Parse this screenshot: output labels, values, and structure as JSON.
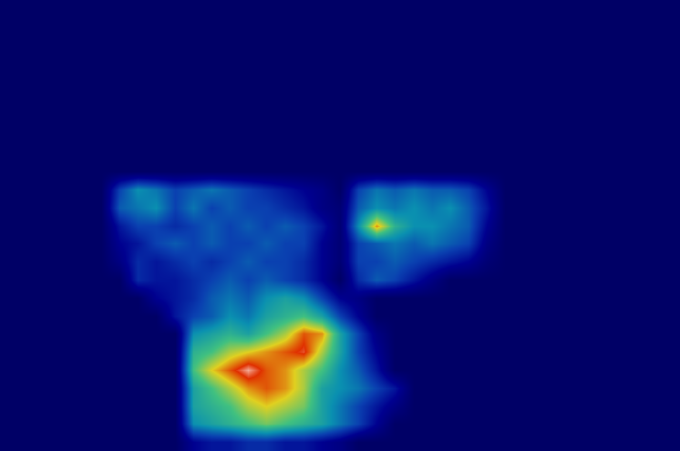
{
  "chart_data": {
    "type": "heatmap",
    "tick_labels": false,
    "grid": false,
    "xlim": [
      -0.5,
      36.5
    ],
    "ylim": [
      24.5,
      -0.5
    ],
    "zlim": [
      0,
      1
    ],
    "cells": [
      [
        0,
        0,
        0,
        0,
        0,
        0,
        0,
        0,
        0,
        0,
        0,
        0,
        0,
        0,
        0,
        0,
        0,
        0,
        0,
        0,
        0,
        0,
        0,
        0,
        0,
        0,
        0,
        0,
        0,
        0,
        0,
        0,
        0,
        0,
        0,
        0,
        0
      ],
      [
        0,
        0,
        0,
        0,
        0,
        0,
        0,
        0,
        0,
        0,
        0,
        0,
        0,
        0,
        0,
        0,
        0,
        0,
        0,
        0,
        0,
        0,
        0,
        0,
        0,
        0,
        0,
        0,
        0,
        0,
        0,
        0,
        0,
        0,
        0,
        0,
        0
      ],
      [
        0,
        0,
        0,
        0,
        0,
        0,
        0,
        0,
        0,
        0,
        0,
        0,
        0,
        0,
        0,
        0,
        0,
        0,
        0,
        0,
        0,
        0,
        0,
        0,
        0,
        0,
        0,
        0,
        0,
        0,
        0,
        0,
        0,
        0,
        0,
        0,
        0
      ],
      [
        0,
        0,
        0,
        0,
        0,
        0,
        0,
        0,
        0,
        0,
        0,
        0,
        0,
        0,
        0,
        0,
        0,
        0,
        0,
        0,
        0,
        0,
        0,
        0,
        0,
        0,
        0,
        0,
        0,
        0,
        0,
        0,
        0,
        0,
        0,
        0,
        0
      ],
      [
        0,
        0,
        0,
        0,
        0,
        0,
        0,
        0,
        0,
        0,
        0,
        0,
        0,
        0,
        0,
        0,
        0,
        0,
        0,
        0,
        0,
        0,
        0,
        0,
        0,
        0,
        0,
        0,
        0,
        0,
        0,
        0,
        0,
        0,
        0,
        0,
        0
      ],
      [
        0,
        0,
        0,
        0,
        0,
        0,
        0,
        0,
        0,
        0,
        0,
        0,
        0,
        0,
        0,
        0,
        0,
        0,
        0,
        0,
        0,
        0,
        0,
        0,
        0,
        0,
        0,
        0,
        0,
        0,
        0,
        0,
        0,
        0,
        0,
        0,
        0
      ],
      [
        0,
        0,
        0,
        0,
        0,
        0,
        0,
        0,
        0,
        0,
        0,
        0,
        0,
        0,
        0,
        0,
        0,
        0,
        0,
        0,
        0,
        0,
        0,
        0,
        0,
        0,
        0,
        0,
        0,
        0,
        0,
        0,
        0,
        0,
        0,
        0,
        0
      ],
      [
        0,
        0,
        0,
        0,
        0,
        0,
        0,
        0,
        0,
        0,
        0,
        0,
        0,
        0,
        0,
        0,
        0,
        0,
        0,
        0,
        0,
        0,
        0,
        0,
        0,
        0,
        0,
        0,
        0,
        0,
        0,
        0,
        0,
        0,
        0,
        0,
        0
      ],
      [
        0,
        0,
        0,
        0,
        0,
        0,
        0,
        0,
        0,
        0,
        0,
        0,
        0,
        0,
        0,
        0,
        0,
        0,
        0,
        0,
        0,
        0,
        0,
        0,
        0,
        0,
        0,
        0,
        0,
        0,
        0,
        0,
        0,
        0,
        0,
        0,
        0
      ],
      [
        0,
        0,
        0,
        0,
        0,
        0,
        0,
        0,
        0,
        0,
        0,
        0,
        0,
        0,
        0,
        0,
        0,
        0,
        0,
        0,
        0,
        0,
        0,
        0,
        0,
        0,
        0,
        0,
        0,
        0,
        0,
        0,
        0,
        0,
        0,
        0,
        0
      ],
      [
        0,
        0,
        0,
        0,
        0,
        0,
        0.3,
        0.45,
        0.4,
        0.3,
        0.35,
        0.4,
        0.35,
        0.3,
        0.25,
        0.2,
        0.15,
        0.1,
        0,
        0.3,
        0.4,
        0.35,
        0.4,
        0.35,
        0.35,
        0.3,
        0.15,
        0,
        0,
        0,
        0,
        0,
        0,
        0,
        0,
        0,
        0
      ],
      [
        0,
        0,
        0,
        0,
        0,
        0,
        0.35,
        0.4,
        0.45,
        0.3,
        0.4,
        0.3,
        0.35,
        0.3,
        0.3,
        0.25,
        0.2,
        0.1,
        0.05,
        0.35,
        0.45,
        0.4,
        0.45,
        0.4,
        0.45,
        0.35,
        0.2,
        0,
        0,
        0,
        0,
        0,
        0,
        0,
        0,
        0,
        0
      ],
      [
        0,
        0,
        0,
        0,
        0,
        0,
        0.2,
        0.3,
        0.3,
        0.25,
        0.3,
        0.35,
        0.3,
        0.35,
        0.3,
        0.35,
        0.3,
        0.2,
        0.05,
        0.45,
        0.8,
        0.55,
        0.45,
        0.45,
        0.4,
        0.35,
        0.15,
        0,
        0,
        0,
        0,
        0,
        0,
        0,
        0,
        0,
        0
      ],
      [
        0,
        0,
        0,
        0,
        0,
        0,
        0.15,
        0.2,
        0.3,
        0.35,
        0.3,
        0.35,
        0.3,
        0.3,
        0.35,
        0.3,
        0.3,
        0.15,
        0.05,
        0.3,
        0.35,
        0.4,
        0.35,
        0.4,
        0.35,
        0.3,
        0.1,
        0,
        0,
        0,
        0,
        0,
        0,
        0,
        0,
        0,
        0
      ],
      [
        0,
        0,
        0,
        0,
        0,
        0,
        0.1,
        0.25,
        0.2,
        0.25,
        0.3,
        0.25,
        0.3,
        0.35,
        0.3,
        0.3,
        0.25,
        0.15,
        0.05,
        0.3,
        0.3,
        0.35,
        0.3,
        0.25,
        0.2,
        0.15,
        0.05,
        0,
        0,
        0,
        0,
        0,
        0,
        0,
        0,
        0,
        0
      ],
      [
        0,
        0,
        0,
        0,
        0,
        0,
        0,
        0.25,
        0.2,
        0.2,
        0.25,
        0.3,
        0.35,
        0.3,
        0.35,
        0.3,
        0.25,
        0.15,
        0,
        0.25,
        0.35,
        0.3,
        0.2,
        0.1,
        0,
        0,
        0,
        0,
        0,
        0,
        0,
        0,
        0,
        0,
        0,
        0,
        0
      ],
      [
        0,
        0,
        0,
        0,
        0,
        0,
        0,
        0,
        0.15,
        0.2,
        0.25,
        0.35,
        0.4,
        0.35,
        0.45,
        0.5,
        0.45,
        0.3,
        0.15,
        0.1,
        0,
        0,
        0,
        0,
        0,
        0,
        0,
        0,
        0,
        0,
        0,
        0,
        0,
        0,
        0,
        0,
        0
      ],
      [
        0,
        0,
        0,
        0,
        0,
        0,
        0,
        0,
        0,
        0.2,
        0.3,
        0.35,
        0.45,
        0.4,
        0.5,
        0.55,
        0.6,
        0.5,
        0.3,
        0.15,
        0,
        0,
        0,
        0,
        0,
        0,
        0,
        0,
        0,
        0,
        0,
        0,
        0,
        0,
        0,
        0,
        0
      ],
      [
        0,
        0,
        0,
        0,
        0,
        0,
        0,
        0,
        0,
        0,
        0.45,
        0.5,
        0.55,
        0.5,
        0.6,
        0.7,
        0.85,
        0.8,
        0.5,
        0.3,
        0.1,
        0,
        0,
        0,
        0,
        0,
        0,
        0,
        0,
        0,
        0,
        0,
        0,
        0,
        0,
        0,
        0
      ],
      [
        0,
        0,
        0,
        0,
        0,
        0,
        0,
        0,
        0,
        0,
        0.55,
        0.6,
        0.7,
        0.75,
        0.8,
        0.85,
        0.9,
        0.7,
        0.5,
        0.3,
        0.15,
        0,
        0,
        0,
        0,
        0,
        0,
        0,
        0,
        0,
        0,
        0,
        0,
        0,
        0,
        0,
        0
      ],
      [
        0,
        0,
        0,
        0,
        0,
        0,
        0,
        0,
        0,
        0,
        0.6,
        0.75,
        0.85,
        0.95,
        0.85,
        0.8,
        0.7,
        0.6,
        0.45,
        0.35,
        0.2,
        0,
        0,
        0,
        0,
        0,
        0,
        0,
        0,
        0,
        0,
        0,
        0,
        0,
        0,
        0,
        0
      ],
      [
        0,
        0,
        0,
        0,
        0,
        0,
        0,
        0,
        0,
        0,
        0.5,
        0.6,
        0.7,
        0.8,
        0.85,
        0.8,
        0.7,
        0.5,
        0.45,
        0.4,
        0.3,
        0.2,
        0,
        0,
        0,
        0,
        0,
        0,
        0,
        0,
        0,
        0,
        0,
        0,
        0,
        0,
        0
      ],
      [
        0,
        0,
        0,
        0,
        0,
        0,
        0,
        0,
        0,
        0,
        0.5,
        0.55,
        0.6,
        0.7,
        0.75,
        0.7,
        0.65,
        0.5,
        0.4,
        0.3,
        0.2,
        0.1,
        0,
        0,
        0,
        0,
        0,
        0,
        0,
        0,
        0,
        0,
        0,
        0,
        0,
        0,
        0
      ],
      [
        0,
        0,
        0,
        0,
        0,
        0,
        0,
        0,
        0,
        0,
        0.45,
        0.5,
        0.55,
        0.6,
        0.65,
        0.6,
        0.55,
        0.5,
        0.4,
        0.3,
        0.15,
        0,
        0,
        0,
        0,
        0,
        0,
        0,
        0,
        0,
        0,
        0,
        0,
        0,
        0,
        0,
        0
      ],
      [
        0,
        0,
        0,
        0,
        0,
        0,
        0,
        0,
        0,
        0,
        0.15,
        0.2,
        0.2,
        0.25,
        0.25,
        0.2,
        0.2,
        0.15,
        0.1,
        0,
        0,
        0,
        0,
        0,
        0,
        0,
        0,
        0,
        0,
        0,
        0,
        0,
        0,
        0,
        0,
        0,
        0
      ]
    ]
  }
}
